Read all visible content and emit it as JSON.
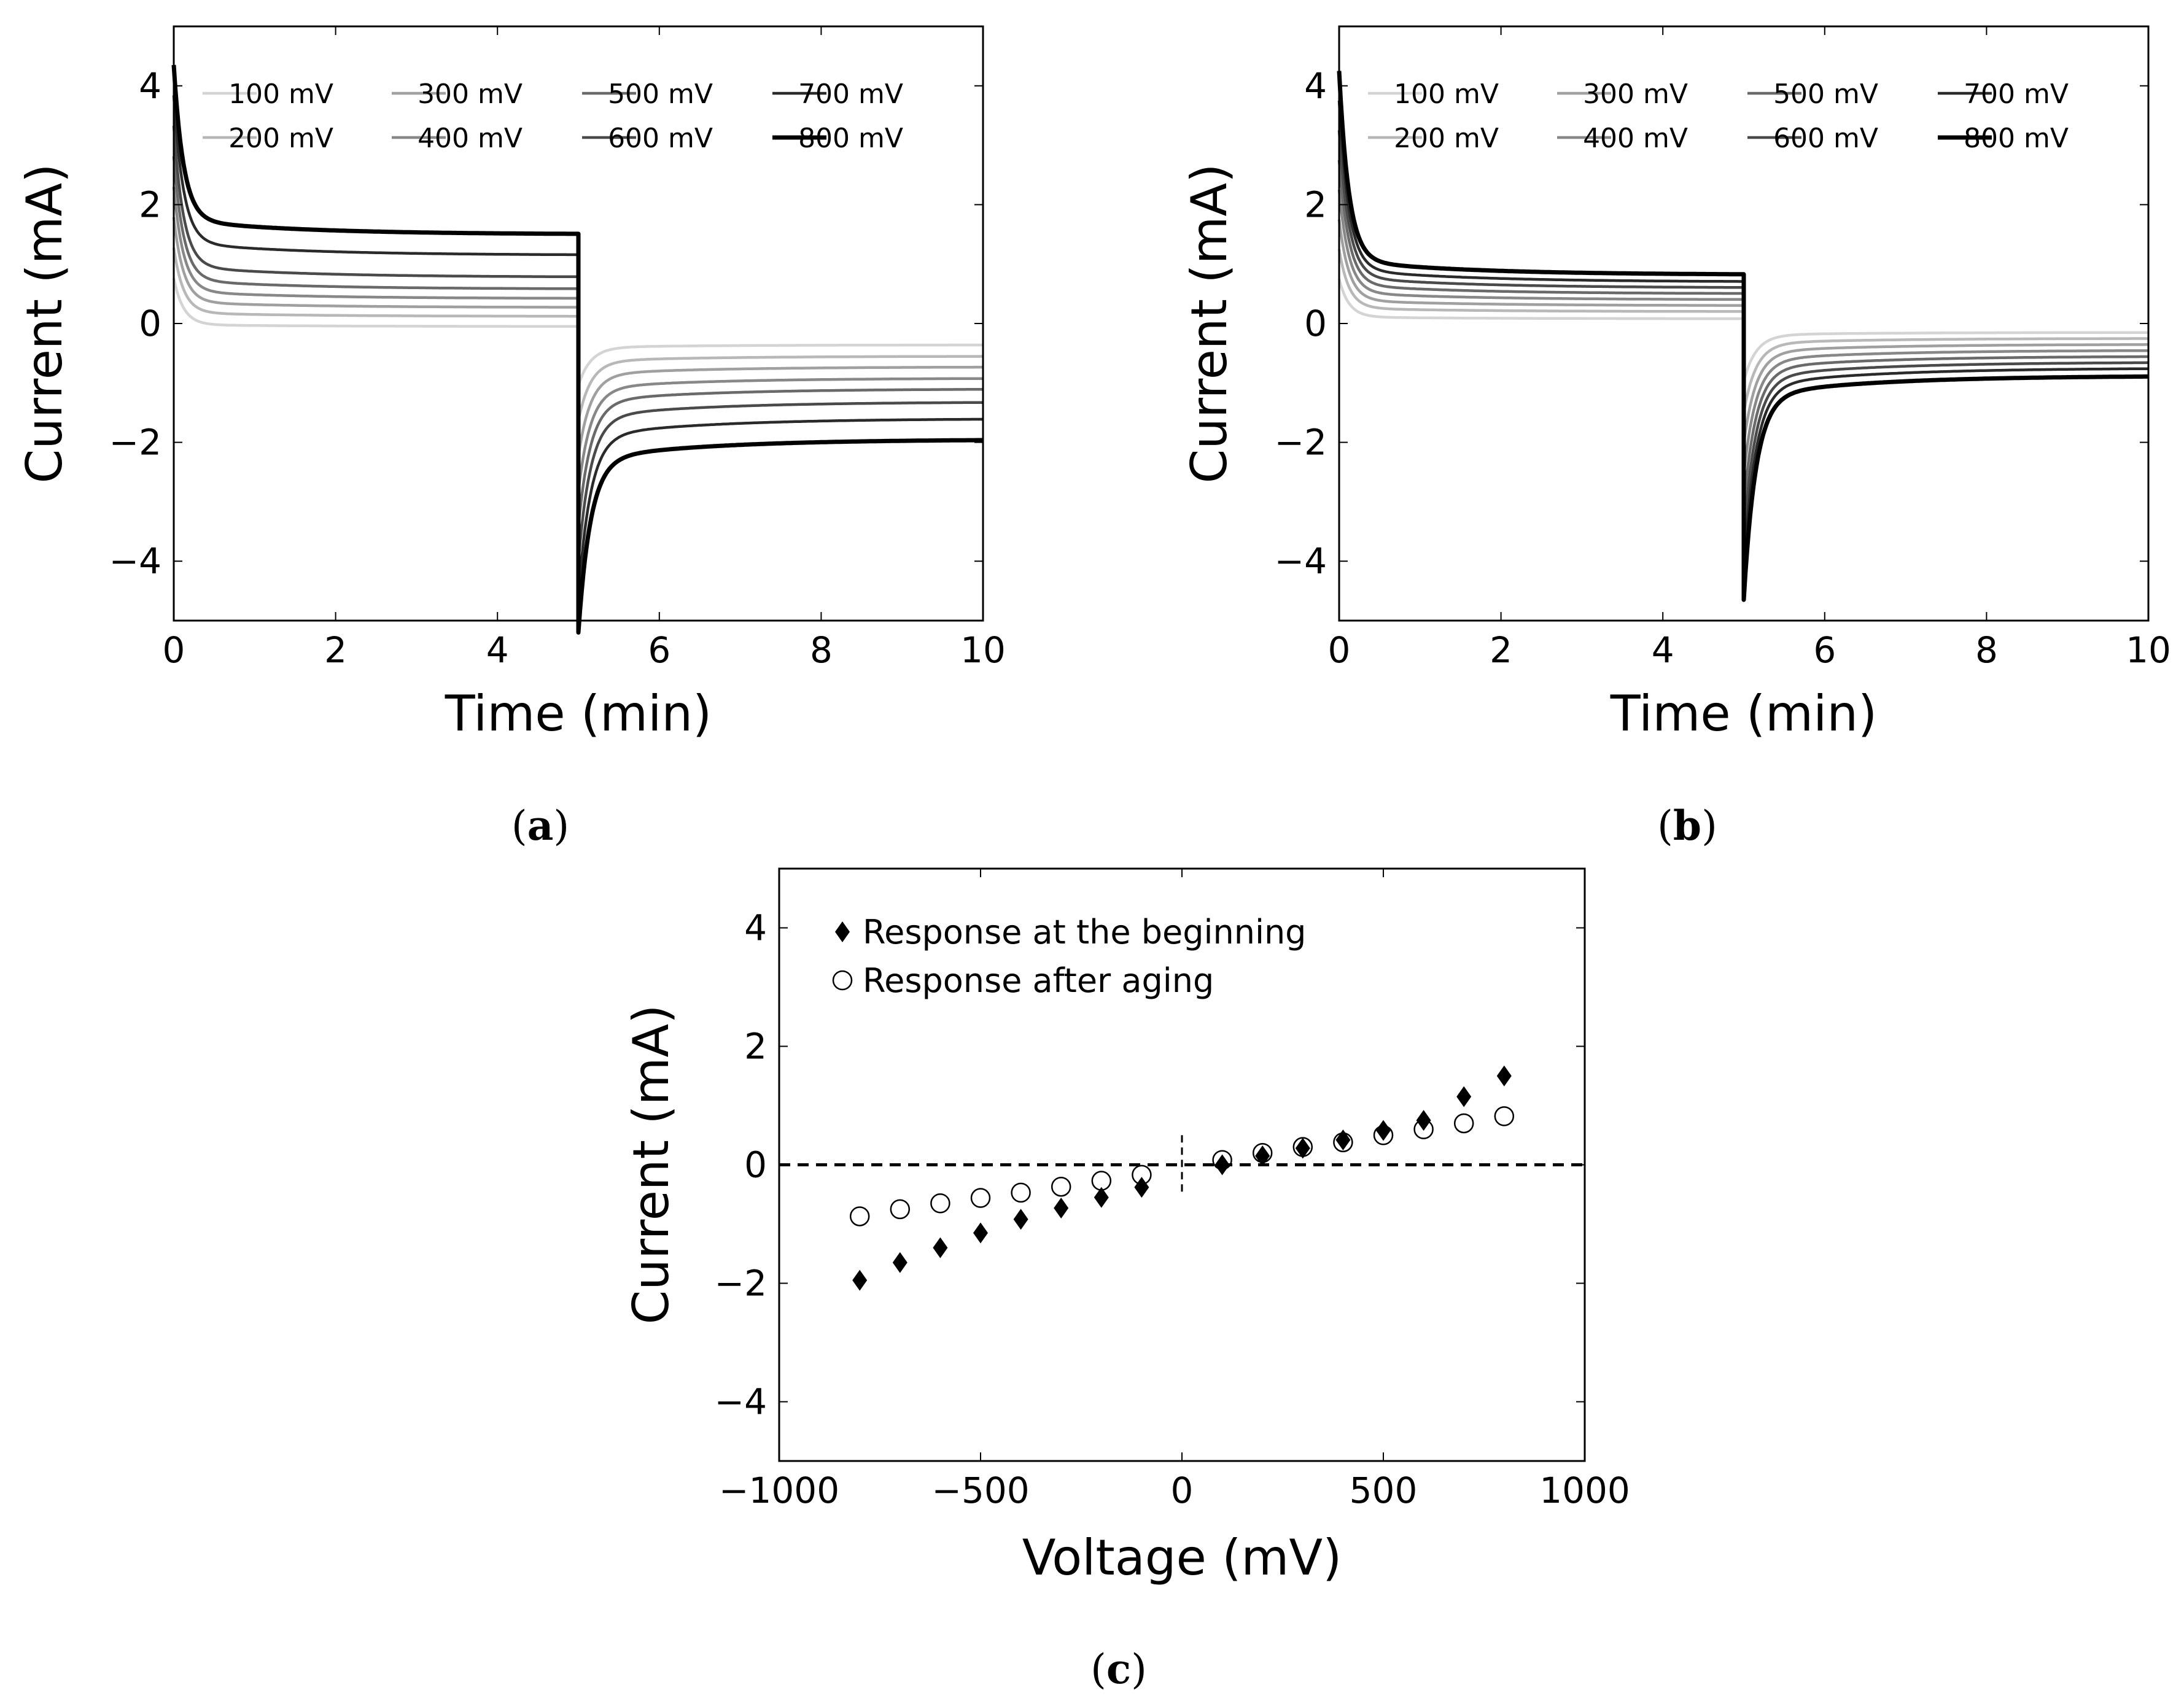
{
  "figure": {
    "captions": [
      {
        "open": "(",
        "letter": "a",
        "close": ")"
      },
      {
        "open": "(",
        "letter": "b",
        "close": ")"
      },
      {
        "open": "(",
        "letter": "c",
        "close": ")"
      }
    ]
  },
  "chart_data": [
    {
      "id": "a",
      "type": "line",
      "title": "",
      "xlabel": "Time (min)",
      "ylabel": "Current (mA)",
      "xlim": [
        0,
        10
      ],
      "ylim": [
        -5,
        5
      ],
      "xticks": [
        0,
        2,
        4,
        6,
        8,
        10
      ],
      "yticks": [
        -4,
        -2,
        0,
        2,
        4
      ],
      "xtick_labels": [
        "0",
        "2",
        "4",
        "6",
        "8",
        "10"
      ],
      "ytick_labels": [
        "−4",
        "−2",
        "0",
        "2",
        "4"
      ],
      "step_time": 5,
      "peak_positive": 4.1,
      "peak_negative": -4.85,
      "series": [
        {
          "name": "100 mV",
          "color": "#d4d4d4",
          "width": 4.5,
          "plateau_on": -0.05,
          "plateau_off": -0.36
        },
        {
          "name": "200 mV",
          "color": "#b8b8b8",
          "width": 4.5,
          "plateau_on": 0.12,
          "plateau_off": -0.55
        },
        {
          "name": "300 mV",
          "color": "#a0a0a0",
          "width": 4.5,
          "plateau_on": 0.27,
          "plateau_off": -0.73
        },
        {
          "name": "400 mV",
          "color": "#888888",
          "width": 4.5,
          "plateau_on": 0.42,
          "plateau_off": -0.92
        },
        {
          "name": "500 mV",
          "color": "#6a6a6a",
          "width": 4.5,
          "plateau_on": 0.58,
          "plateau_off": -1.1
        },
        {
          "name": "600 mV",
          "color": "#4a4a4a",
          "width": 4.5,
          "plateau_on": 0.78,
          "plateau_off": -1.32
        },
        {
          "name": "700 mV",
          "color": "#2a2a2a",
          "width": 4.5,
          "plateau_on": 1.15,
          "plateau_off": -1.6
        },
        {
          "name": "800 mV",
          "color": "#000000",
          "width": 7,
          "plateau_on": 1.5,
          "plateau_off": -1.95
        }
      ]
    },
    {
      "id": "b",
      "type": "line",
      "title": "",
      "xlabel": "Time (min)",
      "ylabel": "Current (mA)",
      "xlim": [
        0,
        10
      ],
      "ylim": [
        -5,
        5
      ],
      "xticks": [
        0,
        2,
        4,
        6,
        8,
        10
      ],
      "yticks": [
        -4,
        -2,
        0,
        2,
        4
      ],
      "xtick_labels": [
        "0",
        "2",
        "4",
        "6",
        "8",
        "10"
      ],
      "ytick_labels": [
        "−4",
        "−2",
        "0",
        "2",
        "4"
      ],
      "step_time": 5,
      "peak_positive": 4.0,
      "peak_negative": -4.3,
      "series": [
        {
          "name": "100 mV",
          "color": "#d4d4d4",
          "width": 4.5,
          "plateau_on": 0.08,
          "plateau_off": -0.15
        },
        {
          "name": "200 mV",
          "color": "#b8b8b8",
          "width": 4.5,
          "plateau_on": 0.2,
          "plateau_off": -0.25
        },
        {
          "name": "300 mV",
          "color": "#a0a0a0",
          "width": 4.5,
          "plateau_on": 0.3,
          "plateau_off": -0.35
        },
        {
          "name": "400 mV",
          "color": "#888888",
          "width": 4.5,
          "plateau_on": 0.4,
          "plateau_off": -0.45
        },
        {
          "name": "500 mV",
          "color": "#6a6a6a",
          "width": 4.5,
          "plateau_on": 0.5,
          "plateau_off": -0.55
        },
        {
          "name": "600 mV",
          "color": "#4a4a4a",
          "width": 4.5,
          "plateau_on": 0.6,
          "plateau_off": -0.65
        },
        {
          "name": "700 mV",
          "color": "#2a2a2a",
          "width": 4.5,
          "plateau_on": 0.7,
          "plateau_off": -0.75
        },
        {
          "name": "800 mV",
          "color": "#000000",
          "width": 7,
          "plateau_on": 0.82,
          "plateau_off": -0.88
        }
      ]
    },
    {
      "id": "c",
      "type": "scatter",
      "title": "",
      "xlabel": "Voltage (mV)",
      "ylabel": "Current (mA)",
      "xlim": [
        -1000,
        1000
      ],
      "ylim": [
        -5,
        5
      ],
      "xticks": [
        -1000,
        -500,
        0,
        500,
        1000
      ],
      "yticks": [
        -4,
        -2,
        0,
        2,
        4
      ],
      "xtick_labels": [
        "−1000",
        "−500",
        "0",
        "500",
        "1000"
      ],
      "ytick_labels": [
        "−4",
        "−2",
        "0",
        "2",
        "4"
      ],
      "reference_lines": {
        "y": 0,
        "x": 0,
        "x_span": [
          -0.5,
          0.5
        ],
        "style": "dashed"
      },
      "legend_position": "top-left",
      "series": [
        {
          "name": "Response at the beginning",
          "marker": "diamond",
          "x": [
            -800,
            -700,
            -600,
            -500,
            -400,
            -300,
            -200,
            -100,
            100,
            200,
            300,
            400,
            500,
            600,
            700,
            800
          ],
          "y": [
            -1.95,
            -1.65,
            -1.4,
            -1.15,
            -0.92,
            -0.73,
            -0.55,
            -0.38,
            0.0,
            0.15,
            0.28,
            0.42,
            0.58,
            0.75,
            1.15,
            1.5
          ]
        },
        {
          "name": "Response after aging",
          "marker": "open-circle",
          "x": [
            -800,
            -700,
            -600,
            -500,
            -400,
            -300,
            -200,
            -100,
            100,
            200,
            300,
            400,
            500,
            600,
            700,
            800
          ],
          "y": [
            -0.87,
            -0.75,
            -0.65,
            -0.56,
            -0.47,
            -0.37,
            -0.27,
            -0.17,
            0.08,
            0.2,
            0.3,
            0.38,
            0.5,
            0.6,
            0.7,
            0.82
          ]
        }
      ]
    }
  ]
}
